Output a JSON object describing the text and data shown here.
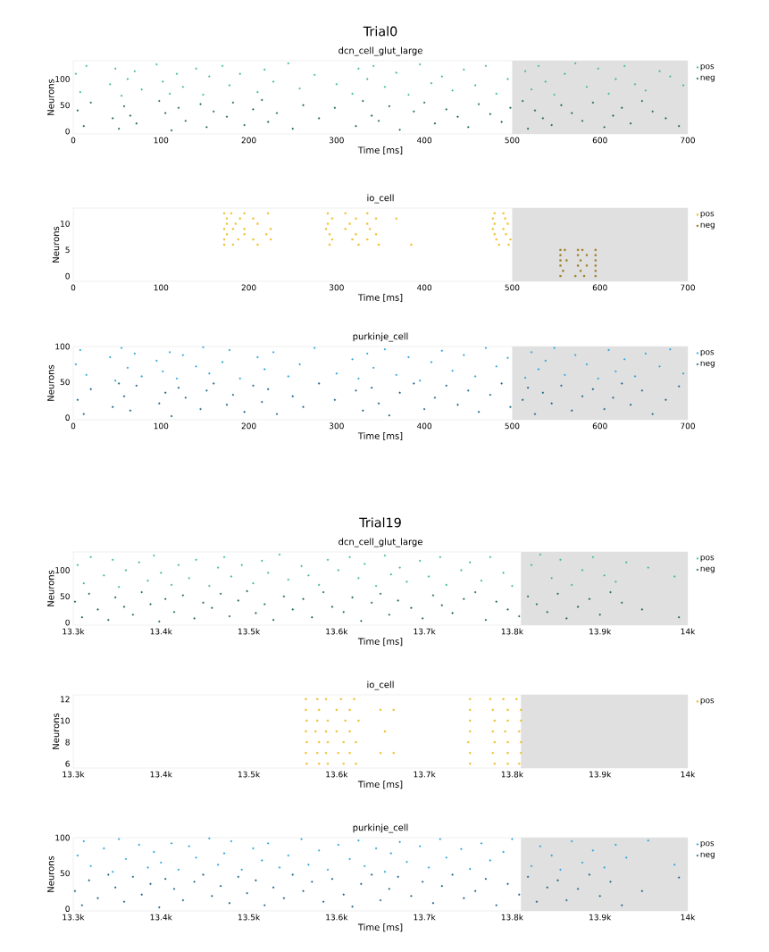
{
  "chart_data": [
    {
      "type": "scatter",
      "title": "Trial0",
      "subtitle": "dcn_cell_glut_large",
      "xlabel": "Time [ms]",
      "ylabel": "Neurons",
      "xlim": [
        0,
        700
      ],
      "ylim": [
        -5,
        135
      ],
      "xticks": [
        0,
        100,
        200,
        300,
        400,
        500,
        600,
        700
      ],
      "yticks": [
        0,
        50,
        100
      ],
      "legend": "top right",
      "marker": "circle",
      "bands": [
        {
          "axis": "x",
          "from": 500,
          "to": 700,
          "color": "#e0e0e0"
        }
      ],
      "series": [
        {
          "name": "pos",
          "color": "#3cbd80",
          "x": [
            3,
            8,
            15,
            42,
            48,
            55,
            62,
            70,
            78,
            95,
            102,
            110,
            118,
            125,
            140,
            148,
            155,
            170,
            178,
            190,
            210,
            218,
            228,
            245,
            258,
            275,
            300,
            318,
            325,
            335,
            342,
            355,
            368,
            382,
            395,
            408,
            420,
            432,
            445,
            458,
            470,
            482,
            495,
            515,
            522,
            530,
            538,
            548,
            560,
            572,
            585,
            598,
            610,
            618,
            628,
            640,
            652,
            668,
            680,
            695
          ],
          "values": [
            110,
            75,
            125,
            90,
            120,
            68,
            100,
            115,
            80,
            128,
            95,
            72,
            110,
            85,
            120,
            70,
            105,
            125,
            88,
            110,
            75,
            118,
            95,
            130,
            82,
            108,
            90,
            72,
            120,
            100,
            125,
            85,
            112,
            70,
            128,
            92,
            105,
            78,
            118,
            88,
            125,
            72,
            100,
            115,
            80,
            125,
            95,
            70,
            110,
            130,
            85,
            120,
            72,
            100,
            125,
            90,
            78,
            115,
            105,
            88
          ]
        },
        {
          "name": "neg",
          "color": "#1b6b47",
          "x": [
            5,
            12,
            20,
            45,
            52,
            58,
            65,
            72,
            98,
            105,
            112,
            120,
            128,
            145,
            152,
            160,
            175,
            182,
            195,
            205,
            215,
            222,
            232,
            250,
            262,
            280,
            298,
            322,
            330,
            340,
            348,
            360,
            372,
            388,
            400,
            412,
            425,
            438,
            450,
            462,
            475,
            488,
            498,
            512,
            518,
            526,
            535,
            545,
            556,
            568,
            580,
            592,
            605,
            615,
            625,
            635,
            648,
            660,
            675,
            690
          ],
          "values": [
            40,
            10,
            55,
            25,
            5,
            48,
            30,
            15,
            58,
            35,
            2,
            45,
            20,
            52,
            8,
            38,
            28,
            55,
            12,
            42,
            60,
            18,
            35,
            5,
            50,
            25,
            45,
            10,
            58,
            30,
            20,
            48,
            3,
            38,
            55,
            15,
            42,
            28,
            8,
            52,
            33,
            18,
            45,
            58,
            5,
            40,
            25,
            12,
            50,
            35,
            20,
            55,
            8,
            30,
            45,
            15,
            58,
            38,
            25,
            10
          ]
        }
      ]
    },
    {
      "type": "scatter",
      "title": "io_cell",
      "xlabel": "Time [ms]",
      "ylabel": "Neurons",
      "xlim": [
        0,
        700
      ],
      "ylim": [
        -1,
        13
      ],
      "xticks": [
        0,
        100,
        200,
        300,
        400,
        500,
        600,
        700
      ],
      "yticks": [
        0,
        5,
        10
      ],
      "legend": "top right",
      "marker": "square",
      "bands": [
        {
          "axis": "x",
          "from": 500,
          "to": 700,
          "color": "#e0e0e0"
        }
      ],
      "series": [
        {
          "name": "pos",
          "color": "#f0c030",
          "x": [
            172,
            180,
            195,
            222,
            175,
            190,
            205,
            175,
            185,
            210,
            172,
            182,
            195,
            225,
            175,
            195,
            220,
            172,
            188,
            205,
            225,
            172,
            182,
            210,
            290,
            310,
            335,
            295,
            322,
            345,
            368,
            290,
            315,
            335,
            288,
            310,
            338,
            292,
            322,
            345,
            295,
            318,
            335,
            292,
            325,
            348,
            385,
            480,
            490,
            478,
            492,
            480,
            495,
            478,
            490,
            480,
            493,
            482,
            498,
            485,
            496
          ],
          "values": [
            12,
            12,
            12,
            12,
            11,
            11,
            11,
            10,
            10,
            10,
            9,
            9,
            9,
            9,
            8,
            8,
            8,
            7,
            7,
            7,
            7,
            6,
            6,
            6,
            12,
            12,
            12,
            11,
            11,
            11,
            11,
            10,
            10,
            10,
            9,
            9,
            9,
            8,
            8,
            8,
            7,
            7,
            7,
            6,
            6,
            6,
            6,
            12,
            12,
            11,
            11,
            10,
            10,
            9,
            9,
            8,
            8,
            7,
            7,
            6,
            6
          ]
        },
        {
          "name": "neg",
          "color": "#9a7a1a",
          "x": [
            555,
            560,
            575,
            580,
            595,
            555,
            575,
            585,
            595,
            555,
            562,
            578,
            595,
            555,
            575,
            585,
            595,
            558,
            578,
            595,
            555,
            572,
            582,
            595
          ],
          "values": [
            5,
            5,
            5,
            5,
            5,
            4,
            4,
            4,
            4,
            3,
            3,
            3,
            3,
            2,
            2,
            2,
            2,
            1,
            1,
            1,
            0,
            0,
            0,
            0
          ]
        }
      ]
    },
    {
      "type": "scatter",
      "title": "purkinje_cell",
      "xlabel": "Time [ms]",
      "ylabel": "Neurons",
      "xlim": [
        0,
        700
      ],
      "ylim": [
        -3,
        100
      ],
      "xticks": [
        0,
        100,
        200,
        300,
        400,
        500,
        600,
        700
      ],
      "yticks": [
        0,
        50,
        100
      ],
      "legend": "top right",
      "marker": "circle",
      "bands": [
        {
          "axis": "x",
          "from": 500,
          "to": 700,
          "color": "#e0e0e0"
        }
      ],
      "series": [
        {
          "name": "pos",
          "color": "#29a3dc",
          "x": [
            3,
            8,
            15,
            42,
            48,
            55,
            62,
            70,
            78,
            95,
            102,
            110,
            118,
            125,
            140,
            148,
            155,
            170,
            178,
            190,
            210,
            218,
            228,
            245,
            258,
            275,
            300,
            318,
            325,
            335,
            342,
            355,
            368,
            382,
            395,
            408,
            420,
            432,
            445,
            458,
            470,
            482,
            495,
            515,
            522,
            530,
            538,
            548,
            560,
            572,
            585,
            598,
            610,
            618,
            628,
            640,
            652,
            668,
            680,
            695
          ],
          "values": [
            75,
            95,
            60,
            85,
            52,
            98,
            70,
            90,
            58,
            80,
            65,
            92,
            55,
            88,
            72,
            99,
            62,
            78,
            95,
            55,
            85,
            68,
            92,
            58,
            75,
            98,
            62,
            82,
            55,
            90,
            70,
            96,
            60,
            85,
            52,
            78,
            94,
            66,
            88,
            58,
            98,
            72,
            84,
            56,
            92,
            68,
            80,
            98,
            60,
            88,
            75,
            55,
            95,
            65,
            82,
            58,
            90,
            72,
            96,
            62
          ]
        },
        {
          "name": "neg",
          "color": "#1a6688",
          "x": [
            5,
            12,
            20,
            45,
            52,
            58,
            65,
            72,
            98,
            105,
            112,
            120,
            128,
            145,
            152,
            160,
            175,
            182,
            195,
            205,
            215,
            222,
            232,
            250,
            262,
            280,
            298,
            322,
            330,
            340,
            348,
            360,
            372,
            388,
            400,
            412,
            425,
            438,
            450,
            462,
            475,
            488,
            498,
            512,
            518,
            526,
            535,
            545,
            556,
            568,
            580,
            592,
            605,
            615,
            625,
            635,
            648,
            660,
            675,
            690
          ],
          "values": [
            25,
            5,
            40,
            15,
            48,
            30,
            10,
            45,
            20,
            35,
            2,
            42,
            28,
            12,
            38,
            48,
            18,
            32,
            8,
            45,
            22,
            40,
            5,
            30,
            15,
            48,
            25,
            38,
            10,
            42,
            20,
            3,
            35,
            48,
            12,
            28,
            45,
            18,
            38,
            8,
            32,
            48,
            15,
            25,
            42,
            5,
            35,
            20,
            45,
            10,
            30,
            40,
            12,
            28,
            48,
            18,
            38,
            5,
            25,
            44
          ]
        }
      ]
    },
    {
      "type": "scatter",
      "title": "Trial19",
      "subtitle": "dcn_cell_glut_large",
      "xlabel": "Time [ms]",
      "ylabel": "Neurons",
      "xlim": [
        13300,
        14000
      ],
      "ylim": [
        -5,
        135
      ],
      "xticks": [
        {
          "value": 13300,
          "label": "13.3k"
        },
        {
          "value": 13400,
          "label": "13.4k"
        },
        {
          "value": 13500,
          "label": "13.5k"
        },
        {
          "value": 13600,
          "label": "13.6k"
        },
        {
          "value": 13700,
          "label": "13.7k"
        },
        {
          "value": 13800,
          "label": "13.8k"
        },
        {
          "value": 13900,
          "label": "13.9k"
        },
        {
          "value": 14000,
          "label": "14k"
        }
      ],
      "yticks": [
        0,
        50,
        100
      ],
      "legend": "top right",
      "marker": "circle",
      "bands": [
        {
          "axis": "x",
          "from": 13810,
          "to": 14000,
          "color": "#e0e0e0"
        }
      ],
      "series": [
        {
          "name": "pos",
          "color": "#3cbd80",
          "x": [
            13305,
            13312,
            13320,
            13335,
            13345,
            13352,
            13360,
            13375,
            13385,
            13392,
            13400,
            13412,
            13420,
            13432,
            13440,
            13455,
            13465,
            13472,
            13480,
            13492,
            13505,
            13515,
            13522,
            13535,
            13545,
            13560,
            13568,
            13580,
            13590,
            13602,
            13615,
            13625,
            13632,
            13645,
            13655,
            13662,
            13672,
            13680,
            13695,
            13705,
            13718,
            13725,
            13742,
            13752,
            13765,
            13775,
            13790,
            13800,
            13822,
            13832,
            13845,
            13855,
            13868,
            13880,
            13892,
            13905,
            13918,
            13930,
            13955,
            13985
          ],
          "values": [
            110,
            75,
            125,
            90,
            120,
            68,
            100,
            115,
            80,
            128,
            95,
            72,
            110,
            85,
            120,
            70,
            105,
            125,
            88,
            110,
            75,
            118,
            95,
            130,
            82,
            108,
            90,
            72,
            120,
            100,
            125,
            85,
            112,
            70,
            128,
            92,
            105,
            78,
            118,
            88,
            125,
            72,
            100,
            115,
            80,
            125,
            95,
            70,
            110,
            130,
            85,
            120,
            72,
            100,
            125,
            90,
            78,
            115,
            105,
            88
          ]
        },
        {
          "name": "neg",
          "color": "#1b6b47",
          "x": [
            13302,
            13310,
            13318,
            13328,
            13340,
            13348,
            13358,
            13368,
            13378,
            13388,
            13398,
            13405,
            13415,
            13425,
            13438,
            13448,
            13458,
            13468,
            13478,
            13488,
            13498,
            13508,
            13518,
            13528,
            13540,
            13550,
            13562,
            13572,
            13585,
            13595,
            13608,
            13618,
            13628,
            13640,
            13650,
            13660,
            13670,
            13685,
            13698,
            13710,
            13720,
            13732,
            13745,
            13758,
            13770,
            13782,
            13795,
            13808,
            13818,
            13828,
            13840,
            13852,
            13862,
            13875,
            13888,
            13900,
            13912,
            13925,
            13948,
            13990
          ],
          "values": [
            40,
            10,
            55,
            25,
            5,
            48,
            30,
            15,
            58,
            35,
            2,
            45,
            20,
            52,
            8,
            38,
            28,
            55,
            12,
            42,
            60,
            18,
            35,
            5,
            50,
            25,
            45,
            10,
            58,
            30,
            20,
            48,
            3,
            38,
            55,
            15,
            42,
            28,
            8,
            52,
            33,
            18,
            45,
            58,
            5,
            40,
            25,
            12,
            50,
            35,
            20,
            55,
            8,
            30,
            45,
            15,
            58,
            38,
            25,
            10
          ]
        }
      ]
    },
    {
      "type": "scatter",
      "title": "io_cell",
      "xlabel": "Time [ms]",
      "ylabel": "Neurons",
      "xlim": [
        13300,
        14000
      ],
      "ylim": [
        5.6,
        12.4
      ],
      "xticks": [
        {
          "value": 13300,
          "label": "13.3k"
        },
        {
          "value": 13400,
          "label": "13.4k"
        },
        {
          "value": 13500,
          "label": "13.5k"
        },
        {
          "value": 13600,
          "label": "13.6k"
        },
        {
          "value": 13700,
          "label": "13.7k"
        },
        {
          "value": 13800,
          "label": "13.8k"
        },
        {
          "value": 13900,
          "label": "13.9k"
        },
        {
          "value": 14000,
          "label": "14k"
        }
      ],
      "yticks": [
        6,
        8,
        10,
        12
      ],
      "legend": "top right",
      "marker": "square",
      "bands": [
        {
          "axis": "x",
          "from": 13810,
          "to": 14000,
          "color": "#e0e0e0"
        }
      ],
      "series": [
        {
          "name": "pos",
          "color": "#f0c030",
          "x": [
            13565,
            13578,
            13588,
            13605,
            13620,
            13752,
            13775,
            13790,
            13805,
            13565,
            13580,
            13600,
            13615,
            13650,
            13665,
            13752,
            13778,
            13795,
            13810,
            13566,
            13578,
            13590,
            13610,
            13625,
            13752,
            13780,
            13795,
            13810,
            13565,
            13576,
            13588,
            13600,
            13615,
            13655,
            13752,
            13778,
            13792,
            13808,
            13566,
            13580,
            13590,
            13608,
            13622,
            13750,
            13780,
            13795,
            13810,
            13565,
            13578,
            13588,
            13602,
            13615,
            13650,
            13665,
            13752,
            13778,
            13795,
            13810,
            13566,
            13580,
            13590,
            13608,
            13622,
            13752,
            13780,
            13795,
            13808
          ],
          "values": [
            12,
            12,
            12,
            12,
            12,
            12,
            12,
            12,
            12,
            11,
            11,
            11,
            11,
            11,
            11,
            11,
            11,
            11,
            11,
            10,
            10,
            10,
            10,
            10,
            10,
            10,
            10,
            10,
            9,
            9,
            9,
            9,
            9,
            9,
            9,
            9,
            9,
            9,
            8,
            8,
            8,
            8,
            8,
            8,
            8,
            8,
            8,
            7,
            7,
            7,
            7,
            7,
            7,
            7,
            7,
            7,
            7,
            7,
            6,
            6,
            6,
            6,
            6,
            6,
            6,
            6,
            6
          ]
        }
      ]
    },
    {
      "type": "scatter",
      "title": "purkinje_cell",
      "xlabel": "Time [ms]",
      "ylabel": "Neurons",
      "xlim": [
        13300,
        14000
      ],
      "ylim": [
        -3,
        100
      ],
      "xticks": [
        {
          "value": 13300,
          "label": "13.3k"
        },
        {
          "value": 13400,
          "label": "13.4k"
        },
        {
          "value": 13500,
          "label": "13.5k"
        },
        {
          "value": 13600,
          "label": "13.6k"
        },
        {
          "value": 13700,
          "label": "13.7k"
        },
        {
          "value": 13800,
          "label": "13.8k"
        },
        {
          "value": 13900,
          "label": "13.9k"
        },
        {
          "value": 14000,
          "label": "14k"
        }
      ],
      "yticks": [
        0,
        50,
        100
      ],
      "legend": "top right",
      "marker": "circle",
      "bands": [
        {
          "axis": "x",
          "from": 13810,
          "to": 14000,
          "color": "#e0e0e0"
        }
      ],
      "series": [
        {
          "name": "pos",
          "color": "#29a3dc",
          "x": [
            13305,
            13312,
            13320,
            13335,
            13345,
            13352,
            13360,
            13375,
            13385,
            13392,
            13400,
            13412,
            13420,
            13432,
            13440,
            13455,
            13465,
            13472,
            13480,
            13492,
            13505,
            13515,
            13522,
            13535,
            13545,
            13560,
            13568,
            13580,
            13590,
            13602,
            13615,
            13625,
            13632,
            13645,
            13655,
            13662,
            13672,
            13680,
            13695,
            13705,
            13718,
            13725,
            13742,
            13752,
            13765,
            13775,
            13790,
            13800,
            13822,
            13832,
            13845,
            13855,
            13868,
            13880,
            13892,
            13905,
            13918,
            13930,
            13955,
            13985
          ],
          "values": [
            75,
            95,
            60,
            85,
            52,
            98,
            70,
            90,
            58,
            80,
            65,
            92,
            55,
            88,
            72,
            99,
            62,
            78,
            95,
            55,
            85,
            68,
            92,
            58,
            75,
            98,
            62,
            82,
            55,
            90,
            70,
            96,
            60,
            85,
            52,
            78,
            94,
            66,
            88,
            58,
            98,
            72,
            84,
            56,
            92,
            68,
            80,
            98,
            60,
            88,
            75,
            55,
            95,
            65,
            82,
            58,
            90,
            72,
            96,
            62
          ]
        },
        {
          "name": "neg",
          "color": "#1a6688",
          "x": [
            13302,
            13310,
            13318,
            13328,
            13340,
            13348,
            13358,
            13368,
            13378,
            13388,
            13398,
            13405,
            13415,
            13425,
            13438,
            13448,
            13458,
            13468,
            13478,
            13488,
            13498,
            13508,
            13518,
            13528,
            13540,
            13550,
            13562,
            13572,
            13585,
            13595,
            13608,
            13618,
            13628,
            13640,
            13650,
            13660,
            13670,
            13685,
            13698,
            13710,
            13720,
            13732,
            13745,
            13758,
            13770,
            13782,
            13795,
            13808,
            13818,
            13828,
            13840,
            13852,
            13862,
            13875,
            13888,
            13900,
            13912,
            13925,
            13948,
            13990
          ],
          "values": [
            25,
            5,
            40,
            15,
            48,
            30,
            10,
            45,
            20,
            35,
            2,
            42,
            28,
            12,
            38,
            48,
            18,
            32,
            8,
            45,
            22,
            40,
            5,
            30,
            15,
            48,
            25,
            38,
            10,
            42,
            20,
            3,
            35,
            48,
            12,
            28,
            45,
            18,
            38,
            8,
            32,
            48,
            15,
            25,
            42,
            5,
            35,
            20,
            45,
            10,
            30,
            40,
            12,
            28,
            48,
            18,
            38,
            5,
            25,
            44
          ]
        }
      ]
    }
  ]
}
